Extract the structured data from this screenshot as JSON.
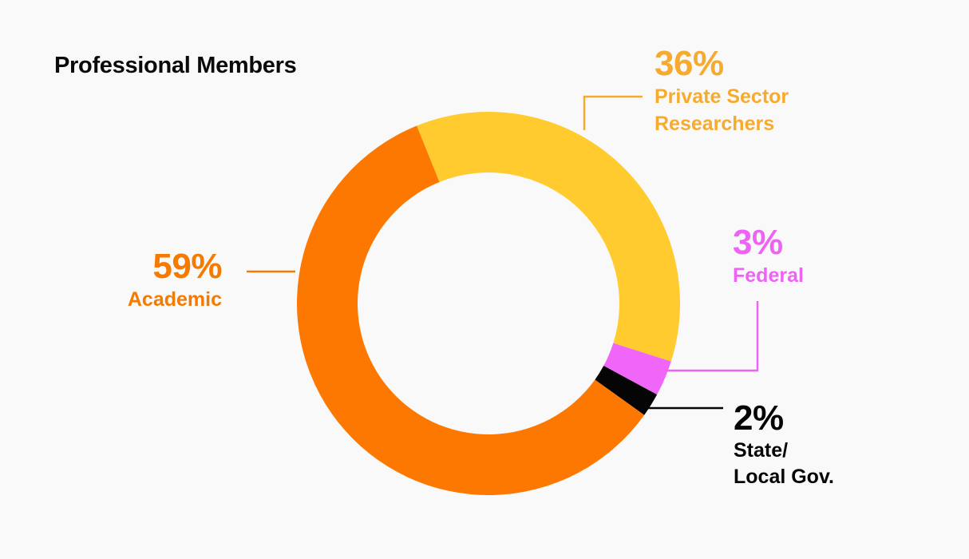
{
  "chart_data": {
    "type": "pie",
    "title": "Professional Members",
    "slices": [
      {
        "label": "Private Sector Researchers",
        "label_lines": [
          "Private Sector",
          "Researchers"
        ],
        "value": 36,
        "value_label": "36%",
        "color": "#ffcb2e",
        "label_color": "#f7ab2e"
      },
      {
        "label": "Federal",
        "label_lines": [
          "Federal"
        ],
        "value": 3,
        "value_label": "3%",
        "color": "#f066f8",
        "label_color": "#ee63f5"
      },
      {
        "label": "State/ Local Gov.",
        "label_lines": [
          "State/",
          "Local Gov."
        ],
        "value": 2,
        "value_label": "2%",
        "color": "#050505",
        "label_color": "#050505"
      },
      {
        "label": "Academic",
        "label_lines": [
          "Academic"
        ],
        "value": 59,
        "value_label": "59%",
        "color": "#fd7800",
        "label_color": "#f57a00"
      }
    ],
    "legend": "none",
    "style": "donut"
  }
}
